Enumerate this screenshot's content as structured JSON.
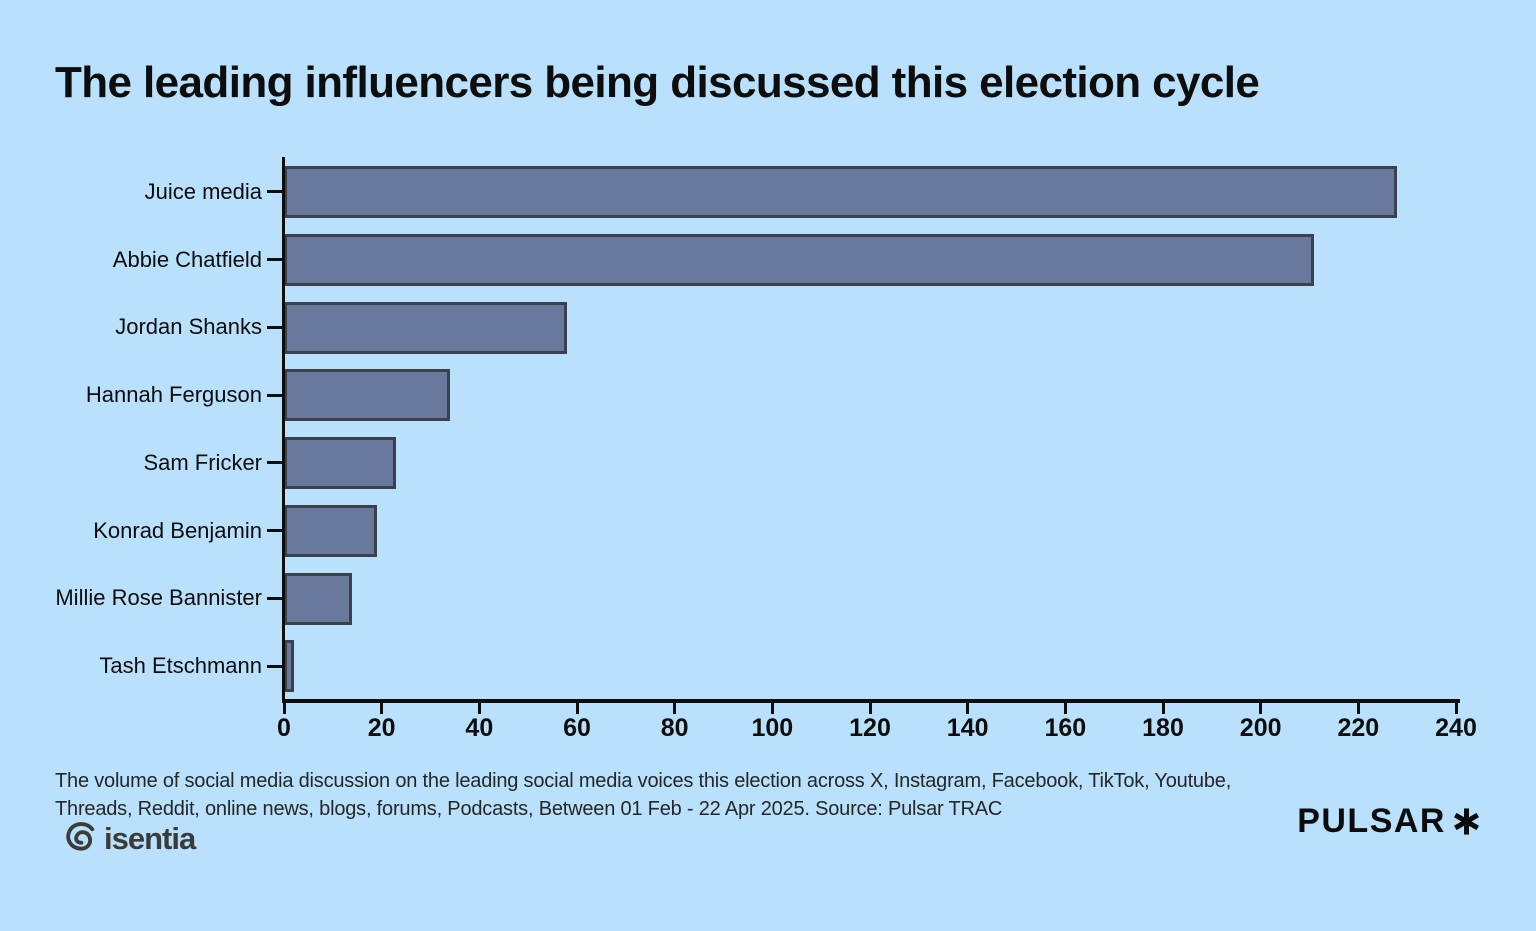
{
  "title": "The leading influencers being discussed this election cycle",
  "chart_data": {
    "type": "bar",
    "orientation": "horizontal",
    "title": "The leading influencers being discussed this election cycle",
    "categories": [
      "Juice media",
      "Abbie Chatfield",
      "Jordan Shanks",
      "Hannah Ferguson",
      "Sam Fricker",
      "Konrad Benjamin",
      "Millie Rose Bannister",
      "Tash Etschmann"
    ],
    "values": [
      228,
      211,
      58,
      34,
      23,
      19,
      14,
      2
    ],
    "xlabel": "",
    "ylabel": "",
    "xlim": [
      0,
      240
    ],
    "x_ticks": [
      0,
      20,
      40,
      60,
      80,
      100,
      120,
      140,
      160,
      180,
      200,
      220,
      240
    ],
    "grid": false,
    "legend": false,
    "bar_color": "#68799b",
    "bar_border_color": "#3a414d"
  },
  "footer": {
    "lines": [
      "The volume of social media discussion on the leading social media voices this election across X, Instagram, Facebook, TikTok, Youtube,",
      "Threads, Reddit, online news, blogs, forums, Podcasts, Between 01 Feb - 22 Apr 2025. Source: Pulsar TRAC"
    ]
  },
  "branding": {
    "isentia": "isentia",
    "pulsar": "PULSAR"
  },
  "colors": {
    "background": "#b9e0fc",
    "bar": "#68799b",
    "bar_border": "#3a414d",
    "axis": "#0d0d0d",
    "text": "#101010",
    "footnote_text": "#262626",
    "isentia": "#3b3b39"
  }
}
